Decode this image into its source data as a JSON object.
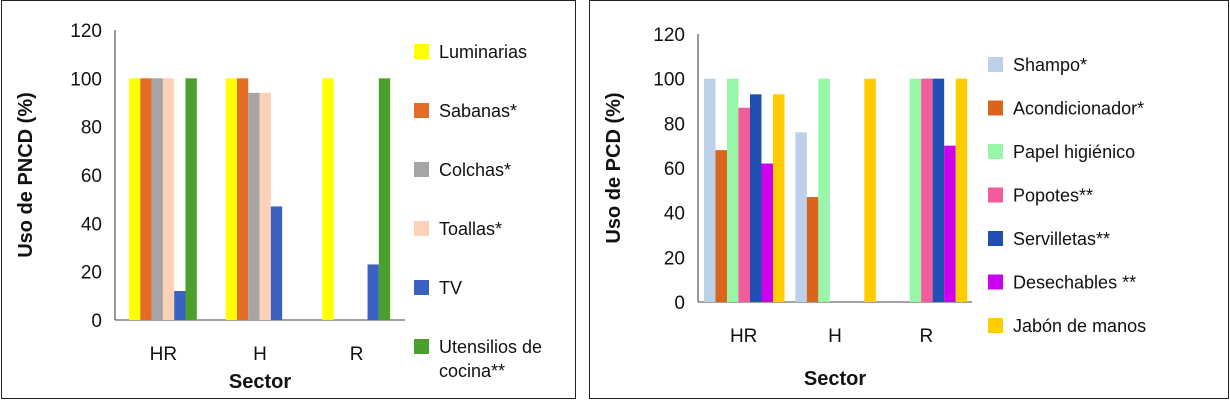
{
  "chart_data": [
    {
      "type": "bar",
      "categories": [
        "HR",
        "H",
        "R"
      ],
      "xlabel": "Sector",
      "ylabel": "Uso de PNCD (%)",
      "ylim": [
        0,
        120
      ],
      "yticks": [
        "0",
        "20",
        "40",
        "60",
        "80",
        "100",
        "120"
      ],
      "grid": false,
      "legend_position": "right",
      "series": [
        {
          "name": "Luminarias",
          "color": "#ffff00",
          "values": [
            100,
            100,
            100
          ]
        },
        {
          "name": "Sabanas*",
          "color": "#e46c25",
          "values": [
            100,
            100,
            0
          ]
        },
        {
          "name": "Colchas*",
          "color": "#a5a5a5",
          "values": [
            100,
            94,
            0
          ]
        },
        {
          "name": "Toallas*",
          "color": "#fbd2b8",
          "values": [
            100,
            94,
            0
          ]
        },
        {
          "name": "TV",
          "color": "#3b62c2",
          "values": [
            12,
            47,
            23
          ]
        },
        {
          "name": "Utensilios de cocina**",
          "legend_lines": [
            "Utensilios de",
            "cocina**"
          ],
          "color": "#4aa02c",
          "values": [
            100,
            0,
            100
          ]
        }
      ]
    },
    {
      "type": "bar",
      "categories": [
        "HR",
        "H",
        "R"
      ],
      "xlabel": "Sector",
      "ylabel": "Uso de PCD (%)",
      "ylim": [
        0,
        120
      ],
      "yticks": [
        "0",
        "20",
        "40",
        "60",
        "80",
        "100",
        "120"
      ],
      "grid": false,
      "legend_position": "right",
      "series": [
        {
          "name": "Shampo*",
          "color": "#bdd0ea",
          "values": [
            100,
            76,
            0
          ]
        },
        {
          "name": "Acondicionador*",
          "color": "#d9651c",
          "values": [
            68,
            47,
            0
          ]
        },
        {
          "name": "Papel higiénico",
          "color": "#99f5a7",
          "values": [
            100,
            100,
            100
          ]
        },
        {
          "name": "Popotes**",
          "color": "#f25b9c",
          "values": [
            87,
            0,
            100
          ]
        },
        {
          "name": "Servilletas**",
          "color": "#1f4fb3",
          "values": [
            93,
            0,
            100
          ]
        },
        {
          "name": "Desechables **",
          "color": "#cc00ee",
          "values": [
            62,
            0,
            70
          ]
        },
        {
          "name": "Jabón de manos",
          "color": "#ffcc00",
          "values": [
            93,
            100,
            100
          ]
        }
      ]
    }
  ]
}
